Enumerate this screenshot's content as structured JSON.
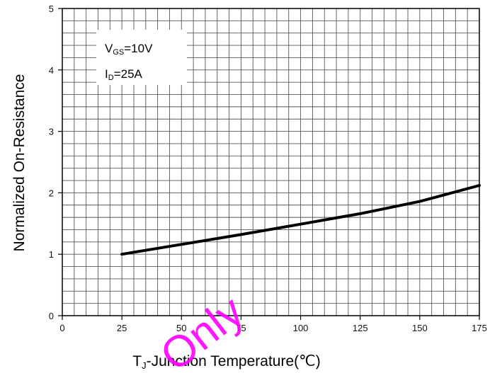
{
  "chart_data": {
    "type": "line",
    "title": "",
    "xlabel": {
      "main": "T",
      "sub": "J",
      "rest": "-Junction Temperature(℃)"
    },
    "ylabel": "Normalized On-Resistance",
    "x_ticks": [
      "0",
      "25",
      "50",
      "75",
      "100",
      "125",
      "150",
      "175"
    ],
    "y_ticks": [
      "0",
      "1",
      "2",
      "3",
      "4",
      "5"
    ],
    "xlim": [
      0,
      175
    ],
    "ylim": [
      0,
      5
    ],
    "grid": true,
    "annotations": [
      {
        "main": "V",
        "sub": "GS",
        "rest": "=10V"
      },
      {
        "main": "I",
        "sub": "D",
        "rest": "=25A"
      }
    ],
    "series": [
      {
        "x": [
          25,
          50,
          75,
          100,
          125,
          150,
          175
        ],
        "y": [
          1.0,
          1.16,
          1.32,
          1.49,
          1.66,
          1.86,
          2.12
        ]
      }
    ],
    "colors": {
      "line": "#000000",
      "grid": "#555555",
      "watermark": "#ff00ff"
    }
  },
  "watermark": {
    "text": "Only"
  }
}
